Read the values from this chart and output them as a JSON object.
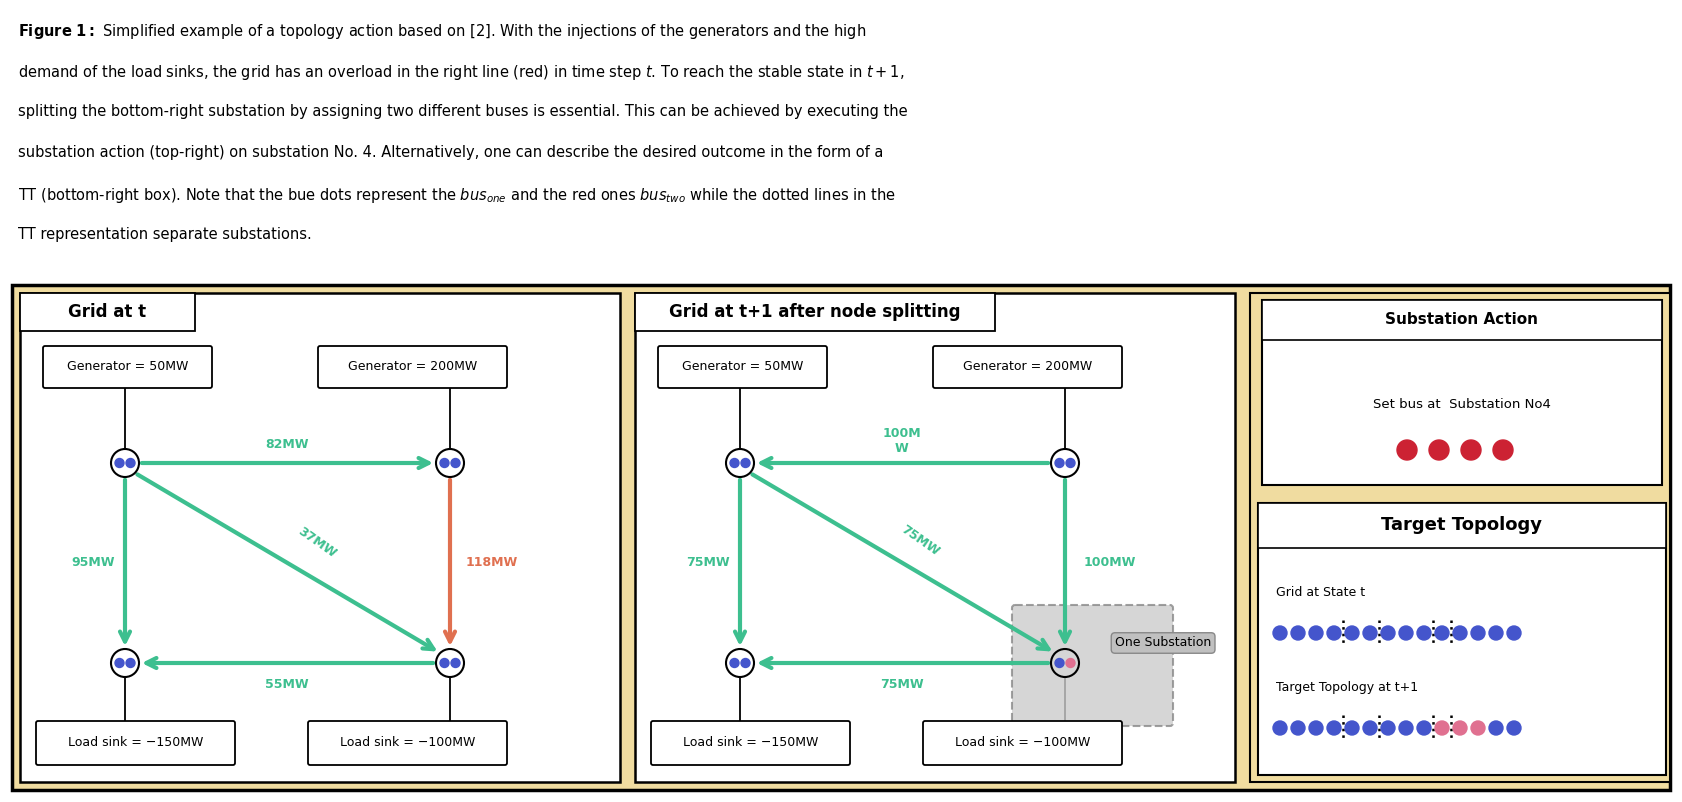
{
  "fig_width": 16.82,
  "fig_height": 8.02,
  "bg_color": "#f0dca0",
  "green_color": "#3dbf8f",
  "red_color": "#e07050",
  "blue_dot_color": "#4455cc",
  "pink_dot_color": "#e07090",
  "red_dot_color": "#cc2233",
  "panel1_title": "Grid at t",
  "panel2_title": "Grid at t+1 after node splitting",
  "panel3_title": "Substation Action",
  "panel4_title": "Target Topology",
  "substation_action_text": "Set bus at  Substation No4",
  "grid_state_t_text": "Grid at State t",
  "target_topology_text": "Target Topology at t+1",
  "caption_lines": [
    "\\mathbf{Figure\\ 1:}\\ \\mathrm{Simplified\\ example\\ of\\ a\\ topology\\ action\\ based\\ on\\ [2].\\ With\\ the\\ injections\\ of\\ the\\ generators\\ and\\ the\\ high}",
    "demand of the load sinks, the grid has an overload in the right line (red) in time step $t$. To reach the stable state in $t + 1$,",
    "splitting the bottom-right substation by assigning two different buses is essential. This can be achieved by executing the",
    "substation action (top-right) on substation No. 4. Alternatively, one can describe the desired outcome in the form of a",
    "TT (bottom-right box). Note that the bue dots represent the $bus_{one}$ and the red ones $bus_{two}$ while the dotted lines in the",
    "TT representation separate substations."
  ]
}
